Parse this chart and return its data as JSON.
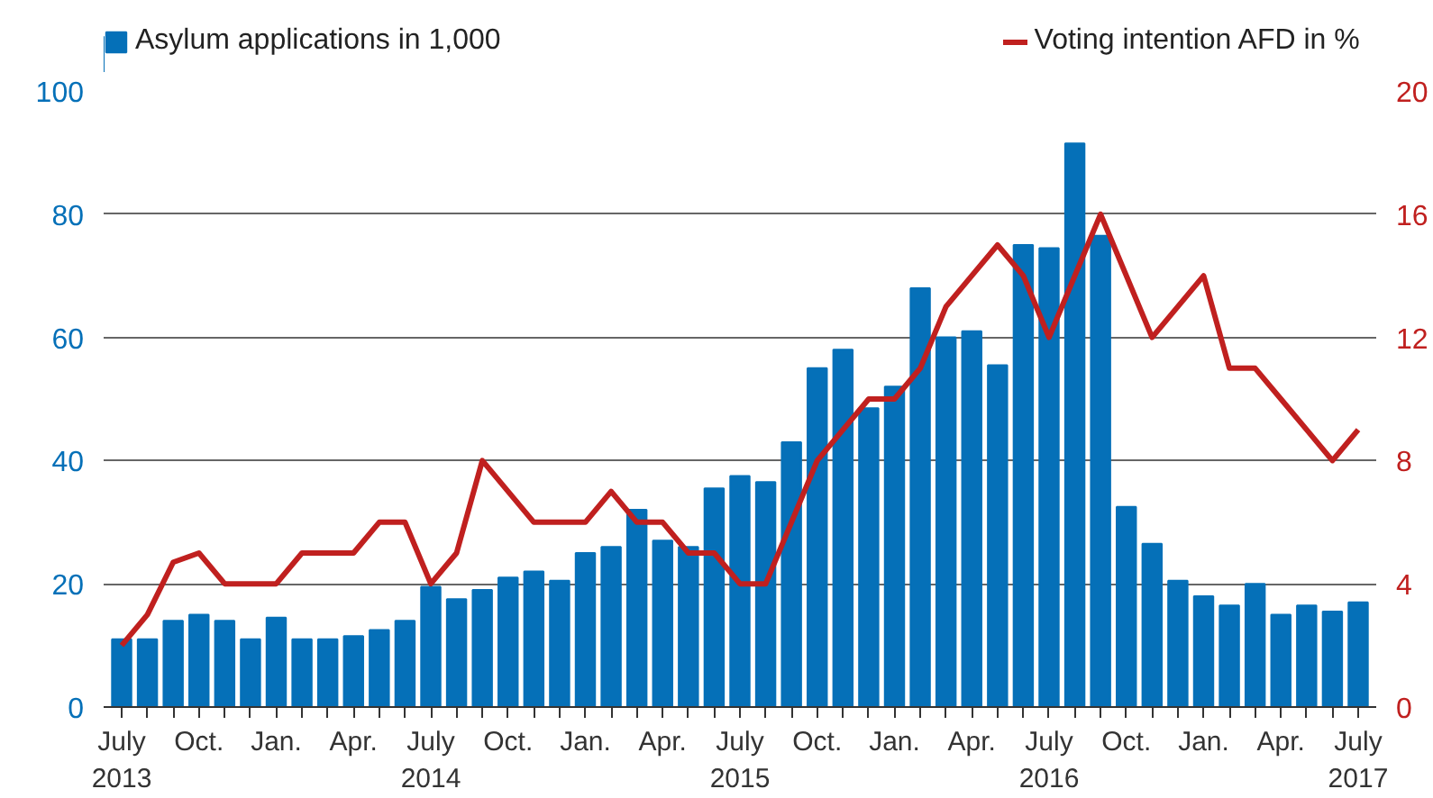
{
  "chart_data": {
    "type": "bar",
    "categories": [
      "July\n2013",
      null,
      null,
      "Oct.",
      null,
      null,
      "Jan.",
      null,
      null,
      "Apr.",
      null,
      null,
      "July\n2014",
      null,
      null,
      "Oct.",
      null,
      null,
      "Jan.",
      null,
      null,
      "Apr.",
      null,
      null,
      "July\n2015",
      null,
      null,
      "Oct.",
      null,
      null,
      "Jan.",
      null,
      null,
      "Apr.",
      null,
      null,
      "July\n2016",
      null,
      null,
      "Oct.",
      null,
      null,
      "Jan.",
      null,
      null,
      "Apr.",
      null,
      null,
      "July\n2017"
    ],
    "series": [
      {
        "name": "Asylum applications in 1,000",
        "color": "#0570b8",
        "values": [
          11,
          11,
          14,
          15,
          14,
          11,
          14.5,
          11,
          11,
          11.5,
          12.5,
          14,
          19.5,
          17.5,
          19,
          21,
          22,
          20.5,
          25,
          26,
          32,
          27,
          26,
          35.5,
          37.5,
          36.5,
          43,
          55,
          58,
          48.5,
          52,
          68,
          60,
          61,
          55.5,
          75,
          74.5,
          91.5,
          76.5,
          32.5,
          26.5,
          20.5,
          18,
          16.5,
          20,
          15,
          16.5,
          15.5,
          17
        ]
      },
      {
        "name": "Voting intention AFD in %",
        "color": "#c0201f",
        "type": "line",
        "axis": "y2",
        "values": [
          2,
          3,
          4.7,
          5,
          4,
          4,
          4,
          5,
          5,
          5,
          6,
          6,
          4,
          5,
          8,
          7,
          6,
          6,
          6,
          7,
          6,
          6,
          5,
          5,
          4,
          4,
          6,
          8,
          9,
          10,
          10,
          11,
          13,
          14,
          15,
          14,
          12,
          14,
          16,
          14,
          12,
          13,
          14,
          11,
          11,
          10,
          9,
          8,
          9
        ]
      }
    ],
    "ylim": [
      0,
      100
    ],
    "yticks": [
      0,
      20,
      40,
      60,
      80,
      100
    ],
    "y2lim": [
      0,
      20
    ],
    "y2ticks": [
      0,
      4,
      8,
      12,
      16,
      20
    ],
    "grid": "y",
    "legend": "top"
  }
}
